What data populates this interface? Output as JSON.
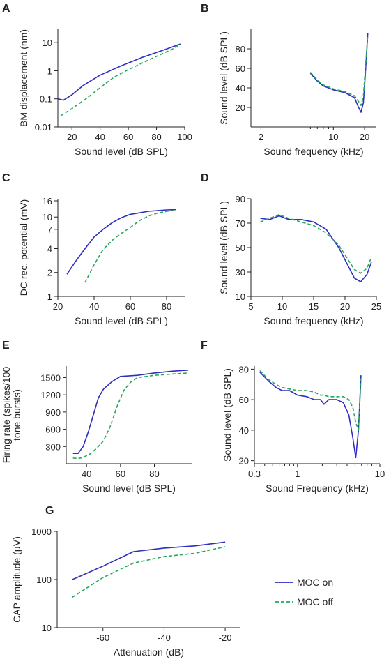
{
  "legend": {
    "entries": [
      {
        "label": "MOC on",
        "color": "#2e2fbf",
        "style": "solid"
      },
      {
        "label": "MOC off",
        "color": "#22aa5a",
        "style": "dashed"
      }
    ]
  },
  "chart_data": [
    {
      "panel": "A",
      "type": "line",
      "xlabel": "Sound level (dB SPL)",
      "ylabel": "BM displacement (nm)",
      "xlim": [
        10,
        100
      ],
      "ylim": [
        0.01,
        30
      ],
      "yscale": "log",
      "xticks": [
        20,
        40,
        60,
        80,
        100
      ],
      "xticklabels": [
        "20",
        "40",
        "60",
        "80",
        "100"
      ],
      "yticks": [
        0.01,
        0.1,
        1,
        10
      ],
      "yticklabels": [
        "0.01",
        "0.1",
        "1",
        "10"
      ],
      "series": [
        {
          "name": "MOC on",
          "x": [
            10,
            14,
            20,
            28,
            40,
            55,
            70,
            85,
            97
          ],
          "y": [
            0.1,
            0.09,
            0.14,
            0.3,
            0.7,
            1.5,
            3,
            5.5,
            9
          ]
        },
        {
          "name": "MOC off",
          "x": [
            12,
            20,
            30,
            40,
            50,
            60,
            75,
            90,
            97
          ],
          "y": [
            0.025,
            0.045,
            0.1,
            0.25,
            0.6,
            1.1,
            2.5,
            5.5,
            8.5
          ]
        }
      ]
    },
    {
      "panel": "B",
      "type": "line",
      "xlabel": "Sound frequency (kHz)",
      "ylabel": "Sound level (dB SPL)",
      "xlim": [
        1.6,
        26
      ],
      "ylim": [
        0,
        100
      ],
      "xscale": "log",
      "xticks": [
        2,
        10,
        20
      ],
      "xticklabels": [
        "2",
        "10",
        "20"
      ],
      "xminorticks": [
        6,
        7,
        8,
        9
      ],
      "yticks": [
        20,
        40,
        60,
        80
      ],
      "yticklabels": [
        "20",
        "40",
        "60",
        "80"
      ],
      "series": [
        {
          "name": "MOC on",
          "x": [
            6,
            7,
            8,
            10,
            13,
            16,
            17.5,
            18.5,
            19.5,
            20.5,
            21.5
          ],
          "y": [
            55,
            47,
            42,
            38,
            35,
            30,
            20,
            15,
            25,
            60,
            96
          ]
        },
        {
          "name": "MOC off",
          "x": [
            6,
            7,
            8,
            10,
            13,
            16,
            17.5,
            18.5,
            19.5,
            20.5,
            21.5
          ],
          "y": [
            56,
            48,
            43,
            39,
            36,
            32,
            26,
            22,
            32,
            65,
            94
          ]
        }
      ]
    },
    {
      "panel": "C",
      "type": "line",
      "xlabel": "Sound level (dB SPL)",
      "ylabel": "DC rec. potential (mV)",
      "xlim": [
        20,
        90
      ],
      "ylim": [
        1,
        17
      ],
      "yscale": "log",
      "xticks": [
        20,
        40,
        60,
        80
      ],
      "xticklabels": [
        "20",
        "40",
        "60",
        "80"
      ],
      "yticks": [
        1,
        2,
        4,
        7,
        10,
        16
      ],
      "yticklabels": [
        "1",
        "2",
        "4",
        "7",
        "10",
        "16"
      ],
      "series": [
        {
          "name": "MOC on",
          "x": [
            25,
            30,
            35,
            40,
            45,
            50,
            55,
            60,
            70,
            80,
            85
          ],
          "y": [
            1.9,
            2.8,
            4,
            5.6,
            7,
            8.5,
            9.8,
            10.8,
            11.8,
            12.3,
            12.4
          ]
        },
        {
          "name": "MOC off",
          "x": [
            35,
            40,
            45,
            50,
            55,
            60,
            65,
            70,
            75,
            80,
            85
          ],
          "y": [
            1.5,
            2.5,
            3.9,
            5.1,
            6.2,
            7.4,
            9,
            10.3,
            11.2,
            11.8,
            12.2
          ]
        }
      ]
    },
    {
      "panel": "D",
      "type": "line",
      "xlabel": "Sound frequency (kHz)",
      "ylabel": "Sound level (dB SPL)",
      "xlim": [
        5,
        25
      ],
      "ylim": [
        10,
        90
      ],
      "xticks": [
        5,
        10,
        15,
        20,
        25
      ],
      "xticklabels": [
        "5",
        "10",
        "15",
        "20",
        "25"
      ],
      "yticks": [
        10,
        30,
        50,
        70,
        90
      ],
      "yticklabels": [
        "10",
        "30",
        "50",
        "70",
        "90"
      ],
      "series": [
        {
          "name": "MOC on",
          "x": [
            6.5,
            8,
            9.5,
            11,
            13,
            15,
            17,
            19,
            20.5,
            21.5,
            22.5,
            23.5,
            24.2
          ],
          "y": [
            74,
            73,
            76,
            73,
            73,
            71,
            65,
            50,
            35,
            25,
            22,
            28,
            38
          ]
        },
        {
          "name": "MOC off",
          "x": [
            6.5,
            8,
            9.5,
            11,
            13,
            15,
            17,
            19,
            20.5,
            21.5,
            22.5,
            23.5,
            24.2
          ],
          "y": [
            71,
            74,
            77,
            74,
            71,
            68,
            62,
            52,
            40,
            32,
            29,
            33,
            42
          ]
        }
      ]
    },
    {
      "panel": "E",
      "type": "line",
      "xlabel": "Sound level (dB SPL)",
      "ylabel": "Firing rate (spikes/100 tone bursts)",
      "xlim": [
        28,
        102
      ],
      "ylim": [
        0,
        1700
      ],
      "xticks": [
        40,
        60,
        80
      ],
      "xticklabels": [
        "40",
        "60",
        "80"
      ],
      "yticks": [
        300,
        600,
        900,
        1200,
        1500
      ],
      "yticklabels": [
        "300",
        "600",
        "900",
        "1200",
        "1500"
      ],
      "series": [
        {
          "name": "MOC on",
          "x": [
            32,
            35,
            38,
            41,
            44,
            47,
            50,
            55,
            60,
            70,
            80,
            90,
            100
          ],
          "y": [
            180,
            180,
            300,
            550,
            850,
            1150,
            1300,
            1430,
            1520,
            1540,
            1580,
            1610,
            1630
          ]
        },
        {
          "name": "MOC off",
          "x": [
            32,
            35,
            38,
            42,
            46,
            50,
            54,
            58,
            62,
            66,
            70,
            80,
            90,
            100
          ],
          "y": [
            100,
            90,
            110,
            170,
            270,
            400,
            650,
            1000,
            1280,
            1420,
            1500,
            1540,
            1560,
            1580
          ]
        }
      ]
    },
    {
      "panel": "F",
      "type": "line",
      "xlabel": "Sound Frequency (kHz)",
      "ylabel": "Sound level (dB SPL)",
      "xlim": [
        0.3,
        10
      ],
      "ylim": [
        18,
        82
      ],
      "xscale": "log",
      "xticks": [
        0.3,
        1,
        10
      ],
      "xticklabels": [
        "0.3",
        "1",
        "10"
      ],
      "xminorticks": [
        0.4,
        0.5,
        0.6,
        0.7,
        0.8,
        0.9,
        2,
        3,
        4,
        5,
        6,
        7,
        8,
        9
      ],
      "yticks": [
        20,
        40,
        60,
        80
      ],
      "yticklabels": [
        "20",
        "40",
        "60",
        "80"
      ],
      "series": [
        {
          "name": "MOC on",
          "x": [
            0.35,
            0.45,
            0.55,
            0.65,
            0.8,
            1,
            1.3,
            1.6,
            1.9,
            2.1,
            2.4,
            3,
            3.6,
            4.2,
            4.7,
            5.1,
            5.5,
            5.9
          ],
          "y": [
            78,
            72,
            68,
            66,
            66,
            63,
            62,
            60,
            60,
            57,
            60,
            60,
            58,
            50,
            35,
            22,
            40,
            76
          ]
        },
        {
          "name": "MOC off",
          "x": [
            0.35,
            0.45,
            0.55,
            0.65,
            0.8,
            1,
            1.3,
            1.6,
            1.9,
            2.1,
            2.4,
            3,
            3.6,
            4.2,
            4.7,
            5.1,
            5.5,
            5.9
          ],
          "y": [
            79,
            73,
            70,
            68,
            67,
            66,
            66,
            65,
            63,
            63,
            62,
            62,
            62,
            60,
            55,
            45,
            40,
            74
          ]
        }
      ]
    },
    {
      "panel": "G",
      "type": "line",
      "xlabel": "Attenuation (dB)",
      "ylabel": "CAP amplitude (µV)",
      "xlim": [
        -75,
        -15
      ],
      "ylim": [
        10,
        1000
      ],
      "yscale": "log",
      "xticks": [
        -60,
        -40,
        -20
      ],
      "xticklabels": [
        "-60",
        "-40",
        "-20"
      ],
      "yticks": [
        10,
        100,
        1000
      ],
      "yticklabels": [
        "10",
        "100",
        "1000"
      ],
      "series": [
        {
          "name": "MOC on",
          "x": [
            -70,
            -60,
            -50,
            -40,
            -30,
            -20
          ],
          "y": [
            100,
            190,
            380,
            450,
            500,
            600
          ]
        },
        {
          "name": "MOC off",
          "x": [
            -70,
            -60,
            -50,
            -40,
            -30,
            -20
          ],
          "y": [
            43,
            110,
            220,
            300,
            350,
            480
          ]
        }
      ]
    }
  ]
}
